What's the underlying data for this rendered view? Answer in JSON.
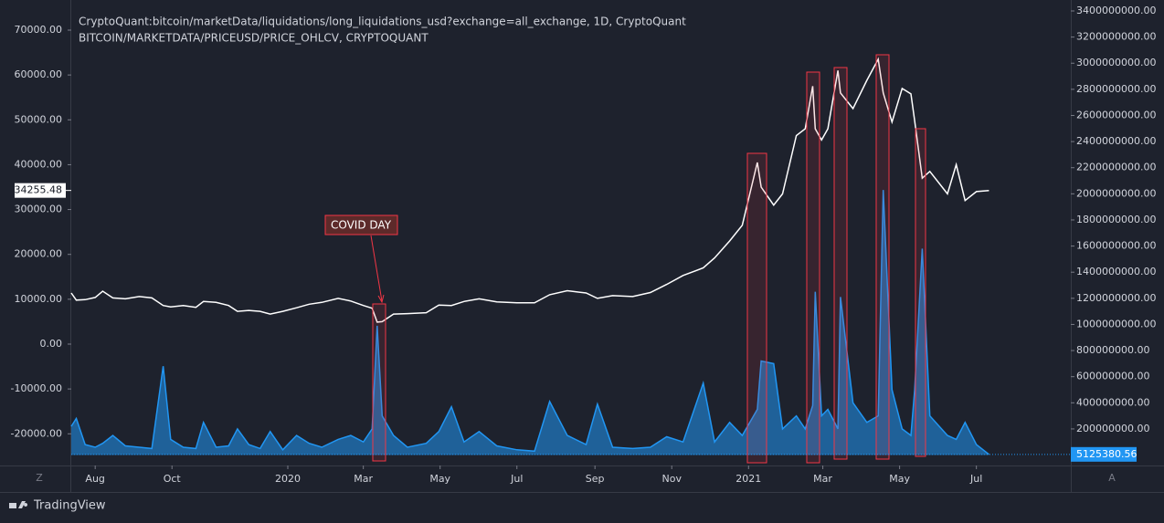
{
  "chart_data": {
    "type": "line",
    "x": [
      "2019-07-13",
      "2019-07-17",
      "2019-07-24",
      "2019-08-01",
      "2019-08-07",
      "2019-08-15",
      "2019-08-25",
      "2019-09-05",
      "2019-09-15",
      "2019-09-24",
      "2019-09-30",
      "2019-10-10",
      "2019-10-20",
      "2019-10-26",
      "2019-11-05",
      "2019-11-15",
      "2019-11-22",
      "2019-12-01",
      "2019-12-10",
      "2019-12-18",
      "2019-12-28",
      "2020-01-08",
      "2020-01-18",
      "2020-01-28",
      "2020-02-10",
      "2020-02-20",
      "2020-03-01",
      "2020-03-08",
      "2020-03-12",
      "2020-03-16",
      "2020-03-25",
      "2020-04-05",
      "2020-04-20",
      "2020-04-30",
      "2020-05-10",
      "2020-05-20",
      "2020-06-01",
      "2020-06-15",
      "2020-07-01",
      "2020-07-15",
      "2020-07-27",
      "2020-08-10",
      "2020-08-25",
      "2020-09-03",
      "2020-09-15",
      "2020-10-01",
      "2020-10-15",
      "2020-10-28",
      "2020-11-10",
      "2020-11-26",
      "2020-12-05",
      "2020-12-17",
      "2020-12-27",
      "2021-01-08",
      "2021-01-11",
      "2021-01-21",
      "2021-01-28",
      "2021-02-08",
      "2021-02-15",
      "2021-02-21",
      "2021-02-23",
      "2021-02-28",
      "2021-03-05",
      "2021-03-13",
      "2021-03-15",
      "2021-03-25",
      "2021-04-05",
      "2021-04-14",
      "2021-04-18",
      "2021-04-25",
      "2021-05-03",
      "2021-05-10",
      "2021-05-13",
      "2021-05-19",
      "2021-05-25",
      "2021-06-08",
      "2021-06-15",
      "2021-06-22",
      "2021-07-01",
      "2021-07-11"
    ],
    "series": [
      {
        "name": "CryptoQuant:bitcoin/marketData/liquidations/long_liquidations_usd?exchange=all_exchange, 1D, CryptoQuant",
        "color": "#2196f3",
        "kind": "area",
        "axis": "y2",
        "values": [
          220000000,
          280000000,
          80000000,
          60000000,
          90000000,
          150000000,
          70000000,
          60000000,
          50000000,
          680000000,
          120000000,
          60000000,
          50000000,
          250000000,
          60000000,
          70000000,
          200000000,
          80000000,
          50000000,
          180000000,
          40000000,
          150000000,
          90000000,
          60000000,
          120000000,
          150000000,
          100000000,
          200000000,
          990000000,
          300000000,
          150000000,
          60000000,
          90000000,
          180000000,
          370000000,
          100000000,
          180000000,
          70000000,
          40000000,
          30000000,
          410000000,
          150000000,
          80000000,
          390000000,
          60000000,
          50000000,
          60000000,
          140000000,
          100000000,
          550000000,
          100000000,
          250000000,
          150000000,
          350000000,
          720000000,
          700000000,
          200000000,
          300000000,
          200000000,
          380000000,
          1250000000,
          300000000,
          350000000,
          200000000,
          1210000000,
          400000000,
          250000000,
          300000000,
          2030000000,
          500000000,
          200000000,
          150000000,
          500000000,
          1580000000,
          300000000,
          150000000,
          120000000,
          250000000,
          80000000,
          5125380.56
        ]
      },
      {
        "name": "BITCOIN/MARKETDATA/PRICEUSD/PRICE_OHLCV, CRYPTOQUANT",
        "color": "#ffffff",
        "kind": "line",
        "axis": "y",
        "values": [
          11400,
          9800,
          9900,
          10400,
          11800,
          10300,
          10100,
          10600,
          10300,
          8600,
          8300,
          8600,
          8200,
          9500,
          9300,
          8600,
          7300,
          7500,
          7300,
          6700,
          7300,
          8100,
          8900,
          9300,
          10200,
          9600,
          8600,
          8000,
          4900,
          5000,
          6700,
          6800,
          7000,
          8700,
          8600,
          9500,
          10100,
          9400,
          9200,
          9200,
          11000,
          11900,
          11400,
          10200,
          10800,
          10600,
          11500,
          13300,
          15300,
          17000,
          19200,
          23000,
          26500,
          40500,
          35000,
          31000,
          33500,
          46500,
          48000,
          57500,
          48000,
          45500,
          48000,
          61000,
          56000,
          52500,
          58800,
          63500,
          56000,
          49500,
          57000,
          55800,
          49800,
          37000,
          38500,
          33500,
          40000,
          32000,
          34000,
          34255.48
        ]
      }
    ],
    "xlim": [
      "2019-07-13",
      "2021-09-14"
    ],
    "xticks": [
      {
        "value": "2019-08-01",
        "label": "Aug"
      },
      {
        "value": "2019-10-01",
        "label": "Oct"
      },
      {
        "value": "2020-01-01",
        "label": "2020"
      },
      {
        "value": "2020-03-01",
        "label": "Mar"
      },
      {
        "value": "2020-05-01",
        "label": "May"
      },
      {
        "value": "2020-07-01",
        "label": "Jul"
      },
      {
        "value": "2020-09-01",
        "label": "Sep"
      },
      {
        "value": "2020-11-01",
        "label": "Nov"
      },
      {
        "value": "2021-01-01",
        "label": "2021"
      },
      {
        "value": "2021-03-01",
        "label": "Mar"
      },
      {
        "value": "2021-05-01",
        "label": "May"
      },
      {
        "value": "2021-07-01",
        "label": "Jul"
      }
    ],
    "ylim": [
      -27066,
      74680
    ],
    "yticks": [
      {
        "value": -20000,
        "label": "-20000.00"
      },
      {
        "value": -10000,
        "label": "-10000.00"
      },
      {
        "value": 0,
        "label": "0.00"
      },
      {
        "value": 10000,
        "label": "10000.00"
      },
      {
        "value": 20000,
        "label": "20000.00"
      },
      {
        "value": 30000,
        "label": "30000.00"
      },
      {
        "value": 40000,
        "label": "40000.00"
      },
      {
        "value": 50000,
        "label": "50000.00"
      },
      {
        "value": 60000,
        "label": "60000.00"
      },
      {
        "value": 70000,
        "label": "70000.00"
      }
    ],
    "y2lim": [
      -80000000,
      3414000000
    ],
    "y2ticks": [
      {
        "value": 200000000,
        "label": "200000000.00"
      },
      {
        "value": 400000000,
        "label": "400000000.00"
      },
      {
        "value": 600000000,
        "label": "600000000.00"
      },
      {
        "value": 800000000,
        "label": "800000000.00"
      },
      {
        "value": 1000000000,
        "label": "1000000000.00"
      },
      {
        "value": 1200000000,
        "label": "1200000000.00"
      },
      {
        "value": 1400000000,
        "label": "1400000000.00"
      },
      {
        "value": 1600000000,
        "label": "1600000000.00"
      },
      {
        "value": 1800000000,
        "label": "1800000000.00"
      },
      {
        "value": 2000000000,
        "label": "2000000000.00"
      },
      {
        "value": 2200000000,
        "label": "2200000000.00"
      },
      {
        "value": 2400000000,
        "label": "2400000000.00"
      },
      {
        "value": 2600000000,
        "label": "2600000000.00"
      },
      {
        "value": 2800000000,
        "label": "2800000000.00"
      },
      {
        "value": 3000000000,
        "label": "3000000000.00"
      },
      {
        "value": 3200000000,
        "label": "3200000000.00"
      },
      {
        "value": 3400000000,
        "label": "3400000000.00"
      }
    ],
    "annotation": "COVID DAY",
    "scale_buttons": [
      "Z",
      "A"
    ],
    "brand": "TradingView"
  }
}
